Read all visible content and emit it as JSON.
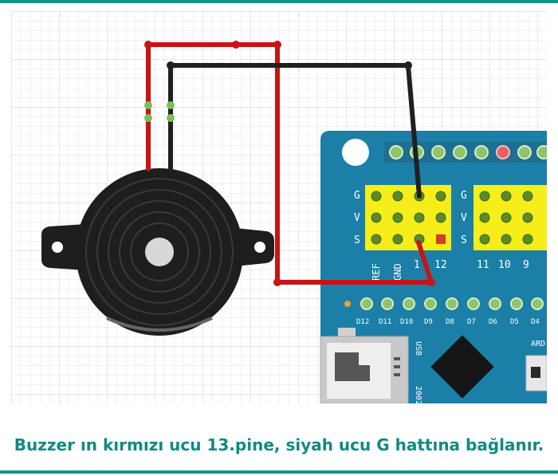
{
  "caption": "Buzzer ın kırmızı ucu 13.pine, siyah ucu G hattına bağlanır.",
  "colors": {
    "accent": "#12958a",
    "caption": "#0f8b84",
    "board": "#1b7fa8",
    "wire_red": "#c81414",
    "wire_black": "#202020",
    "pin_yellow": "#f6ee1a",
    "pin_green": "#8fc46a",
    "pin_red": "#e76060"
  },
  "board": {
    "row_labels": [
      "G",
      "V",
      "S"
    ],
    "left_col_labels": [
      "REF",
      "GND",
      "1",
      "12"
    ],
    "right_col_labels": [
      "11",
      "10",
      "9"
    ],
    "digital_labels": [
      "D12",
      "D11",
      "D10",
      "D9",
      "D8",
      "D7",
      "D6",
      "D5",
      "D4"
    ],
    "usb_label": "USB",
    "side_label": "ARD",
    "bottom_label": "2002"
  }
}
